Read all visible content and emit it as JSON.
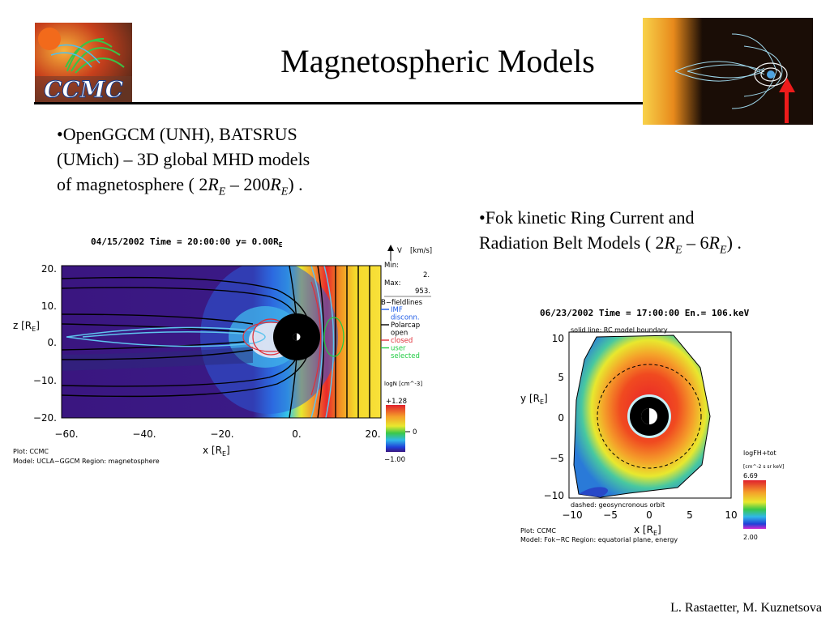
{
  "slide": {
    "title": "Magnetospheric Models",
    "logo_text": "CCMC",
    "bullet1": {
      "line1": "•OpenGGCM (UNH), BATSRUS",
      "line2": "(UMich) – 3D global MHD models",
      "line3_prefix": "of magnetosphere    ( 2",
      "line3_mid": " – 200",
      "line3_suffix": ") ."
    },
    "bullet2": {
      "line1": "•Fok kinetic Ring Current and",
      "line2_prefix": "Radiation Belt Models ( 2",
      "line2_mid": " – 6",
      "line2_suffix": ") ."
    },
    "r_symbol": "R",
    "r_sub": "E",
    "credit": "L. Rastaetter, M. Kuznetsova"
  },
  "plot1": {
    "header": "04/15/2002 Time = 20:00:00 y= 0.00R",
    "header_sub": "E",
    "y_ticks": [
      "20.",
      "10.",
      "0.",
      "−10.",
      "−20."
    ],
    "x_ticks": [
      "−60.",
      "−40.",
      "−20.",
      "0.",
      "20."
    ],
    "ylabel": "z [R",
    "xlabel": "x [R",
    "label_sub": "E",
    "vector_label": "V",
    "vector_unit": "[km/s]",
    "min_label": "Min:",
    "min_value": "2.",
    "max_label": "Max:",
    "max_value": "953.",
    "fieldlines_title": "B−fieldlines",
    "legend": [
      {
        "text": "IMF",
        "color": "#1e5be6"
      },
      {
        "text": "disconn.",
        "color": "#1e5be6"
      },
      {
        "text": "Polarcap",
        "color": "#000000"
      },
      {
        "text": "open",
        "color": "#000000"
      },
      {
        "text": "closed",
        "color": "#e0303a"
      },
      {
        "text": "user",
        "color": "#22cc44"
      },
      {
        "text": "selected",
        "color": "#22cc44"
      }
    ],
    "colorbar_label": "logN [cm^-3]",
    "cbar_max": "+1.28",
    "cbar_mid": "0",
    "cbar_min": "−1.00",
    "footer1": "Plot: CCMC",
    "footer2": "Model: UCLA−GGCM   Region: magnetosphere"
  },
  "plot2": {
    "header": "06/23/2002 Time = 17:00:00 En.= 106.keV",
    "solid_label": "solid line: RC model boundary",
    "dashed_label": "dashed: geosyncronous orbit",
    "y_ticks": [
      "10",
      "5",
      "0",
      "−5",
      "−10"
    ],
    "x_ticks": [
      "−10",
      "−5",
      "0",
      "5",
      "10"
    ],
    "ylabel": "y [R",
    "xlabel": "x [R",
    "label_sub": "E",
    "colorbar_label": "logFH+tot",
    "colorbar_units": "[cm^-2 s sr keV]",
    "cbar_max": "6.69",
    "cbar_min": "2.00",
    "footer1": "Plot: CCMC",
    "footer2": "Model: Fok−RC   Region: equatorial plane, energy"
  }
}
